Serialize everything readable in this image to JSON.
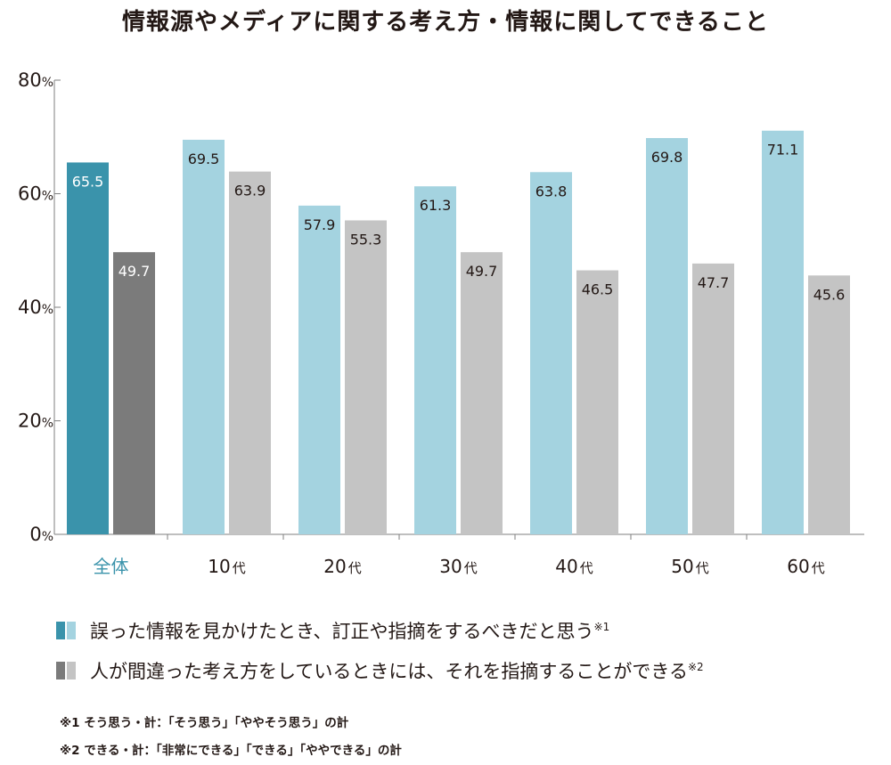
{
  "title": "情報源やメディアに関する考え方・情報に関してできること",
  "chart_data": {
    "type": "bar",
    "categories": [
      "全体",
      "10代",
      "20代",
      "30代",
      "40代",
      "50代",
      "60代"
    ],
    "series": [
      {
        "name": "誤った情報を見かけたとき、訂正や指摘をするべきだと思う",
        "values": [
          65.5,
          69.5,
          57.9,
          61.3,
          63.8,
          69.8,
          71.1
        ]
      },
      {
        "name": "人が間違った考え方をしているときには、それを指摘することができる",
        "values": [
          49.7,
          63.9,
          55.3,
          49.7,
          46.5,
          47.7,
          45.6
        ]
      }
    ],
    "ylim": [
      0,
      80
    ],
    "yticks": [
      0,
      20,
      40,
      60,
      80
    ],
    "ytick_unit": "%",
    "grid": false,
    "colors": {
      "series1_total": "#3a93ab",
      "series1": "#a4d3e0",
      "series2_total": "#7b7b7b",
      "series2": "#c4c4c4",
      "label_on_dark": "#ffffff",
      "label_on_light": "#231815"
    }
  },
  "legend": [
    {
      "text": "誤った情報を見かけたとき、訂正や指摘をするべきだと思う",
      "mark": "※1",
      "color_dark": "#3a93ab",
      "color_light": "#a4d3e0"
    },
    {
      "text": "人が間違った考え方をしているときには、それを指摘することができる",
      "mark": "※2",
      "color_dark": "#7b7b7b",
      "color_light": "#c4c4c4"
    }
  ],
  "notes": [
    "※1 そう思う・計：「そう思う」「ややそう思う」の計",
    "※2 できる・計：「非常にできる」「できる」「ややできる」の計"
  ]
}
